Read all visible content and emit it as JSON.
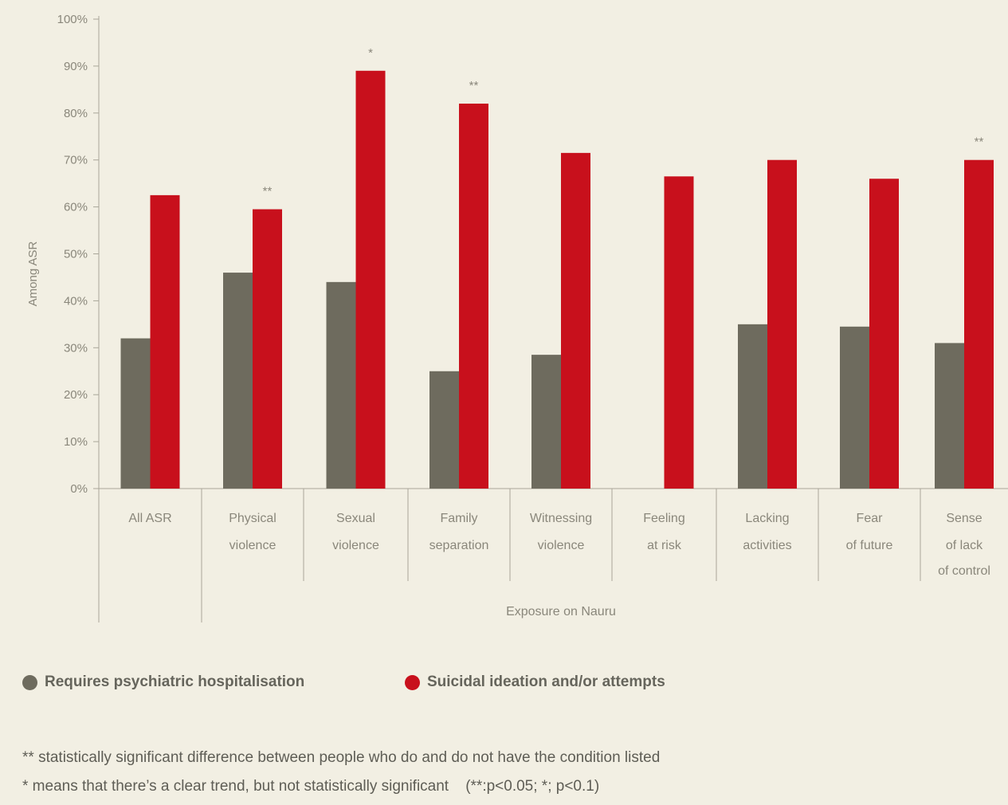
{
  "chart_data": {
    "type": "bar",
    "ylabel": "Among ASR",
    "ylim": [
      0,
      100
    ],
    "yticks": [
      "0%",
      "10%",
      "20%",
      "30%",
      "40%",
      "50%",
      "60%",
      "70%",
      "80%",
      "90%",
      "100%"
    ],
    "categories": [
      [
        "All ASR"
      ],
      [
        "Physical",
        "violence"
      ],
      [
        "Sexual",
        "violence"
      ],
      [
        "Family",
        "separation"
      ],
      [
        "Witnessing",
        "violence"
      ],
      [
        "Feeling",
        "at risk"
      ],
      [
        "Lacking",
        "activities"
      ],
      [
        "Fear",
        "of future"
      ],
      [
        "Sense",
        "of lack",
        "of control"
      ]
    ],
    "group_label": "Exposure on Nauru",
    "series": [
      {
        "name": "Requires psychiatric hospitalisation",
        "color": "#6e6b5e",
        "values": [
          32,
          46,
          44,
          25,
          28.5,
          null,
          35,
          34.5,
          31
        ]
      },
      {
        "name": "Suicidal ideation and/or attempts",
        "color": "#c8101c",
        "values": [
          62.5,
          59.5,
          89,
          82,
          71.5,
          66.5,
          70,
          66,
          70
        ]
      }
    ],
    "significance": [
      "",
      "**",
      "*",
      "**",
      "",
      "",
      "",
      "",
      "**"
    ]
  },
  "legend": {
    "items": [
      {
        "label": "Requires psychiatric hospitalisation",
        "color": "#6e6b5e"
      },
      {
        "label": "Suicidal ideation and/or attempts",
        "color": "#c8101c"
      }
    ]
  },
  "notes": [
    "** statistically significant difference between people who do and do not have the condition listed",
    "* means that there’s a clear trend, but not statistically significant    (**:p<0.05; *; p<0.1)"
  ]
}
